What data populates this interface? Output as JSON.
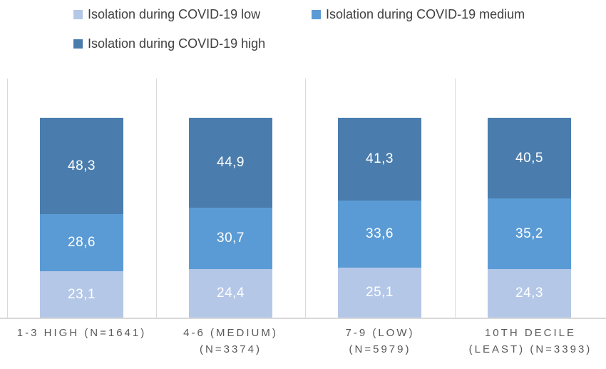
{
  "chart_data": {
    "type": "bar",
    "stacked": true,
    "orientation": "vertical",
    "title": "",
    "xlabel": "",
    "ylabel": "",
    "ylim": [
      0,
      120
    ],
    "legend_position": "top",
    "gridlines": "vertical category separators only, no horizontal gridlines, no y-axis",
    "decimal_separator": ",",
    "categories": [
      {
        "line1": "1-3 HIGH (N=1641)",
        "line2": ""
      },
      {
        "line1": "4-6 (MEDIUM)",
        "line2": "(N=3374)"
      },
      {
        "line1": "7-9 (LOW)",
        "line2": "(N=5979)"
      },
      {
        "line1": "10TH DECILE",
        "line2": "(LEAST) (N=3393)"
      }
    ],
    "series": [
      {
        "name": "Isolation during COVID-19 low",
        "color": "#B4C7E7",
        "values": [
          23.1,
          24.4,
          25.1,
          24.3
        ],
        "labels": [
          "23,1",
          "24,4",
          "25,1",
          "24,3"
        ]
      },
      {
        "name": "Isolation during COVID-19 medium",
        "color": "#5B9BD5",
        "values": [
          28.6,
          30.7,
          33.6,
          35.2
        ],
        "labels": [
          "28,6",
          "30,7",
          "33,6",
          "35,2"
        ]
      },
      {
        "name": "Isolation during COVID-19 high",
        "color": "#4A7DAD",
        "values": [
          48.3,
          44.9,
          41.3,
          40.5
        ],
        "labels": [
          "48,3",
          "44,9",
          "41,3",
          "40,5"
        ]
      }
    ],
    "colors": {
      "gridline": "#D9D9D9",
      "axis_line": "#D9D9D9",
      "category_label_text": "#595959",
      "legend_text": "#404040",
      "value_label_text": "#FFFFFF",
      "background": "#FFFFFF"
    }
  }
}
